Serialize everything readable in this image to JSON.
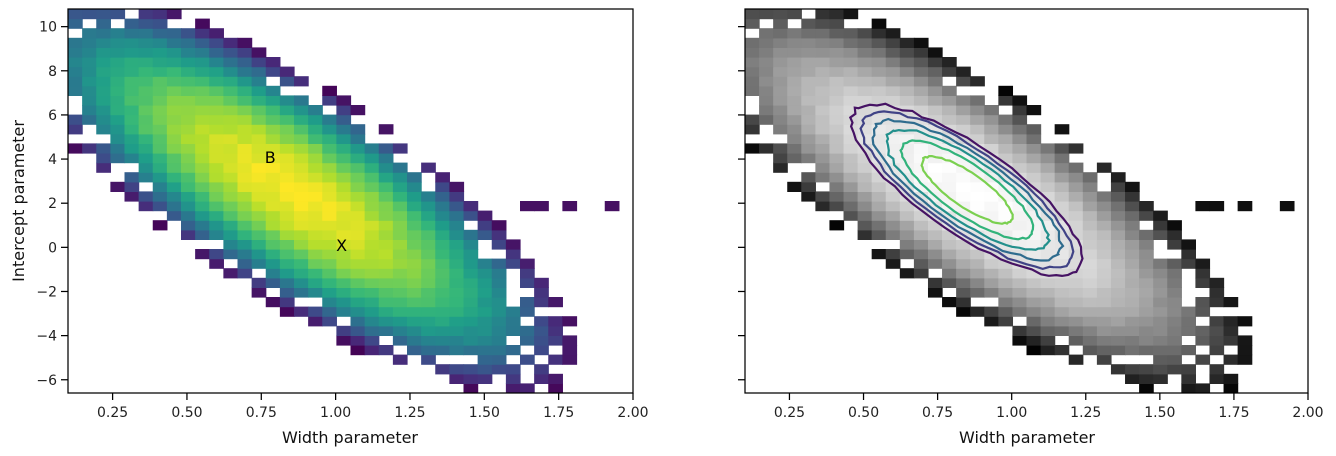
{
  "chart_data": [
    {
      "type": "heatmap",
      "title": "",
      "xlabel": "Width parameter",
      "ylabel": "Intercept parameter",
      "xlim": [
        0.1,
        2.0
      ],
      "ylim": [
        -6.6,
        10.8
      ],
      "xticks": [
        0.25,
        0.5,
        0.75,
        1.0,
        1.25,
        1.5,
        1.75,
        2.0
      ],
      "xtick_labels": [
        "0.25",
        "0.50",
        "0.75",
        "1.00",
        "1.25",
        "1.50",
        "1.75",
        "2.00"
      ],
      "yticks": [
        -6,
        -4,
        -2,
        0,
        2,
        4,
        6,
        8,
        10
      ],
      "ytick_labels": [
        "−6",
        "−4",
        "−2",
        "0",
        "2",
        "4",
        "6",
        "8",
        "10"
      ],
      "colormap": "viridis",
      "grid": false,
      "bins": {
        "nx": 40,
        "ny": 40
      },
      "density": {
        "center": [
          0.85,
          2.6
        ],
        "sd": [
          0.27,
          2.6
        ],
        "correlation": -0.8
      },
      "outlier_tail": {
        "x": [
          1.3,
          2.0
        ],
        "y": 2.0
      },
      "annotations": [
        {
          "text": "B",
          "x": 0.78,
          "y": 4.1
        },
        {
          "text": "X",
          "x": 1.02,
          "y": 0.1
        }
      ]
    },
    {
      "type": "heatmap",
      "title": "",
      "xlabel": "Width parameter",
      "ylabel": "",
      "xlim": [
        0.1,
        2.0
      ],
      "ylim": [
        -6.6,
        10.8
      ],
      "xticks": [
        0.25,
        0.5,
        0.75,
        1.0,
        1.25,
        1.5,
        1.75,
        2.0
      ],
      "xtick_labels": [
        "0.25",
        "0.50",
        "0.75",
        "1.00",
        "1.25",
        "1.50",
        "1.75",
        "2.00"
      ],
      "yticks": [
        -6,
        -4,
        -2,
        0,
        2,
        4,
        6,
        8,
        10
      ],
      "ytick_labels": [],
      "colormap": "gray",
      "grid": false,
      "contour_levels": 6,
      "contour_colormap": "viridis",
      "bins": {
        "nx": 40,
        "ny": 40
      },
      "density": {
        "center": [
          0.85,
          2.6
        ],
        "sd": [
          0.27,
          2.6
        ],
        "correlation": -0.8
      },
      "outlier_tail": {
        "x": [
          1.3,
          2.0
        ],
        "y": 2.0
      }
    }
  ]
}
